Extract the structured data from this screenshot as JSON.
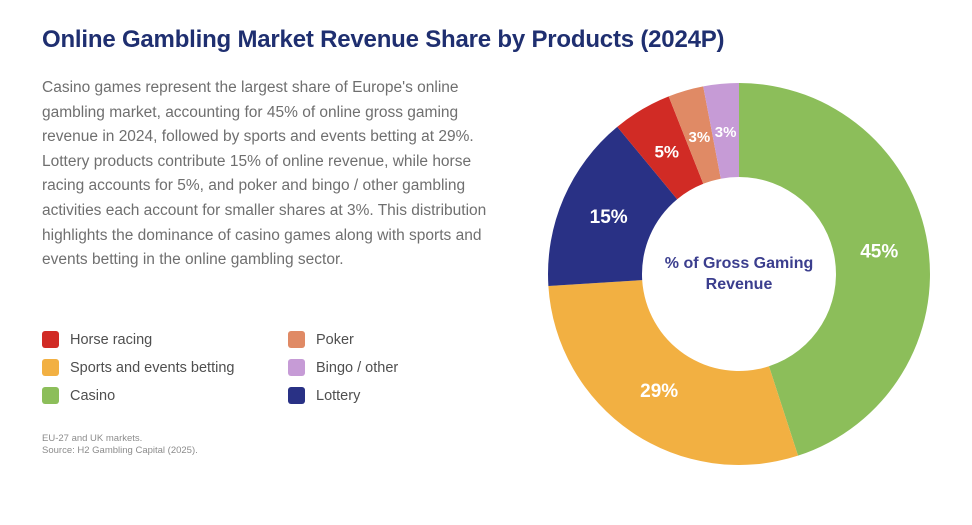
{
  "page": {
    "title": "Online Gambling Market Revenue Share by Products (2024P)",
    "description": "Casino games represent the largest share of Europe's online gambling market, accounting for 45% of online gross gaming revenue in 2024, followed by sports and events betting at 29%. Lottery products contribute 15% of online revenue, while horse racing accounts for 5%, and poker and bingo / other gambling activities each account for smaller shares at 3%. This distribution highlights the dominance of casino games along with sports and events betting in the online gambling sector.",
    "footnotes": [
      "EU-27 and UK markets.",
      "Source: H2 Gambling Capital (2025)."
    ]
  },
  "legend": {
    "columns": [
      {
        "items": [
          {
            "label": "Horse racing",
            "color": "#d12b25"
          },
          {
            "label": "Sports and events betting",
            "color": "#f2b042"
          },
          {
            "label": "Casino",
            "color": "#8cbe5a"
          }
        ]
      },
      {
        "items": [
          {
            "label": "Poker",
            "color": "#e08a65"
          },
          {
            "label": "Bingo / other",
            "color": "#c69bd6"
          },
          {
            "label": "Lottery",
            "color": "#293185"
          }
        ]
      }
    ]
  },
  "chart_data": {
    "type": "pie",
    "variant": "donut",
    "title": "Online Gambling Market Revenue Share by Products (2024P)",
    "center_label": "% of Gross Gaming Revenue",
    "unit": "%",
    "direction": "clockwise",
    "start_angle_deg": 0,
    "donut_hole_ratio": 0.51,
    "segments": [
      {
        "label": "Casino",
        "value": 45,
        "color": "#8cbe5a"
      },
      {
        "label": "Sports and events betting",
        "value": 29,
        "color": "#f2b042"
      },
      {
        "label": "Lottery",
        "value": 15,
        "color": "#293185"
      },
      {
        "label": "Horse racing",
        "value": 5,
        "color": "#d12b25"
      },
      {
        "label": "Poker",
        "value": 3,
        "color": "#e08a65"
      },
      {
        "label": "Bingo / other",
        "value": 3,
        "color": "#c69bd6"
      }
    ]
  },
  "colors": {
    "background": "#ffffff",
    "title_text": "#1f2f70",
    "body_text": "#6f6f6f",
    "legend_text": "#4f4f4f",
    "footnote_text": "#8c8c8c",
    "center_label_text": "#3b3e8e",
    "slice_value_label_text": "#ffffff"
  }
}
